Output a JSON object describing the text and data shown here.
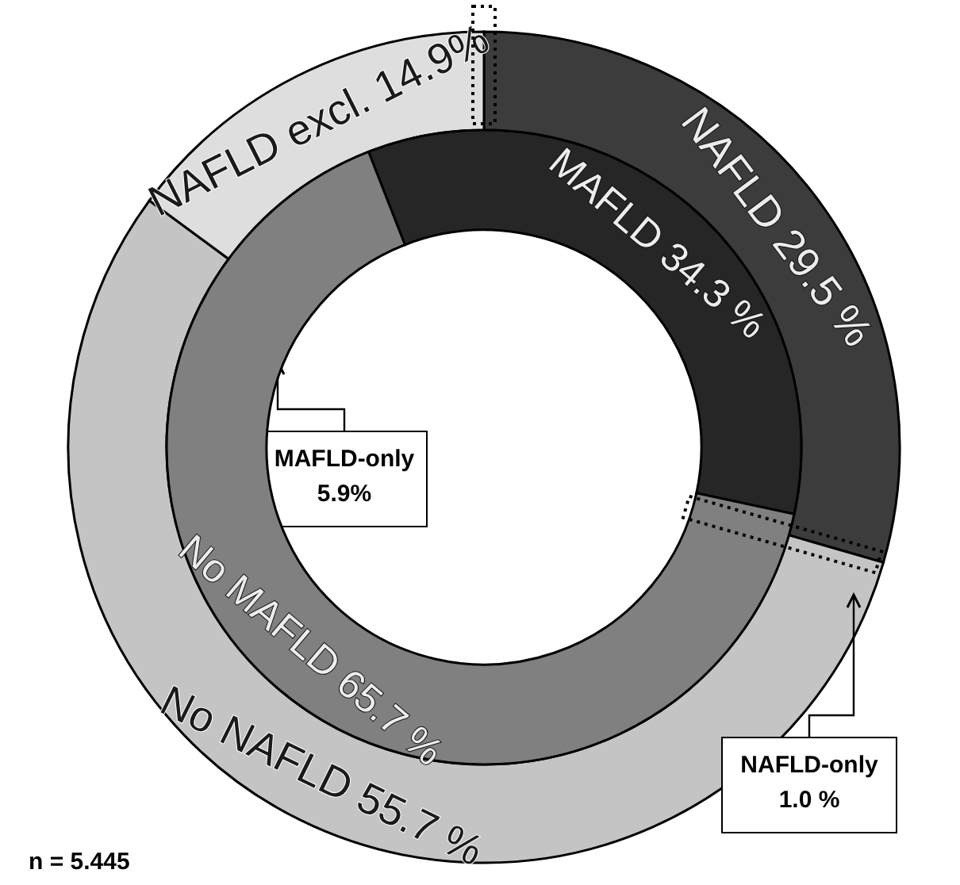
{
  "chart_data": [
    {
      "type": "donut",
      "categories": [
        "NAFLD",
        "No NAFLD",
        "NAFLD excl."
      ],
      "values": [
        29.5,
        55.7,
        14.9
      ],
      "colors": [
        "#3c3c3c",
        "#c4c4c4",
        "#dedede"
      ],
      "value_labels": [
        "29.5 %",
        "55.7 %",
        "14.9%"
      ],
      "annotations": [
        "MAFLD-only\n5.9%",
        "NAFLD-only\n1.0 %",
        "n = 5.445"
      ]
    },
    {
      "type": "donut",
      "categories": [
        "MAFLD",
        "No MAFLD"
      ],
      "values": [
        34.3,
        65.7
      ],
      "colors": [
        "#262626",
        "#808080"
      ],
      "value_labels": [
        "34.3 %",
        "65.7 %"
      ]
    }
  ]
}
